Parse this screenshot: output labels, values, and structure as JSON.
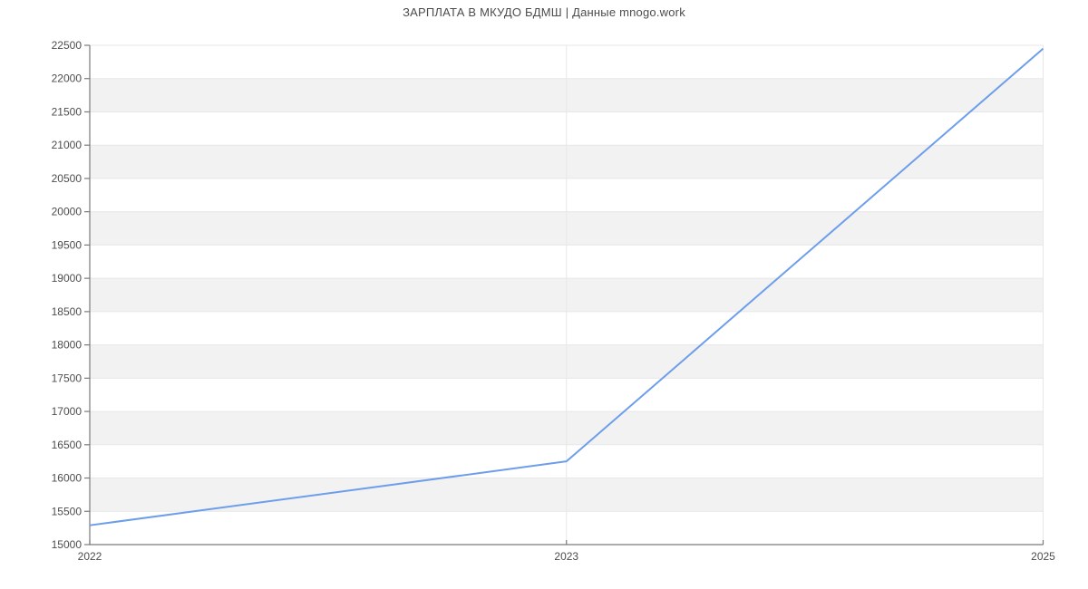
{
  "chart_data": {
    "type": "line",
    "title": "ЗАРПЛАТА В МКУДО БДМШ | Данные mnogo.work",
    "categories": [
      "2022",
      "2023",
      "2025"
    ],
    "values": [
      15290,
      16250,
      22450
    ],
    "xlabel": "",
    "ylabel": "",
    "ylim": [
      15000,
      22500
    ],
    "ytick_step": 500,
    "yticks": [
      15000,
      15500,
      16000,
      16500,
      17000,
      17500,
      18000,
      18500,
      19000,
      19500,
      20000,
      20500,
      21000,
      21500,
      22000,
      22500
    ],
    "grid": true,
    "legend_position": "none",
    "band_fill_alternating": true,
    "colors": {
      "line": "#6d9eeb",
      "band": "#f2f2f2",
      "gridline": "#e7e7e7",
      "axis": "#7a7a7a",
      "tick_label": "#4d4d4d",
      "title": "#4c4c4c"
    }
  }
}
